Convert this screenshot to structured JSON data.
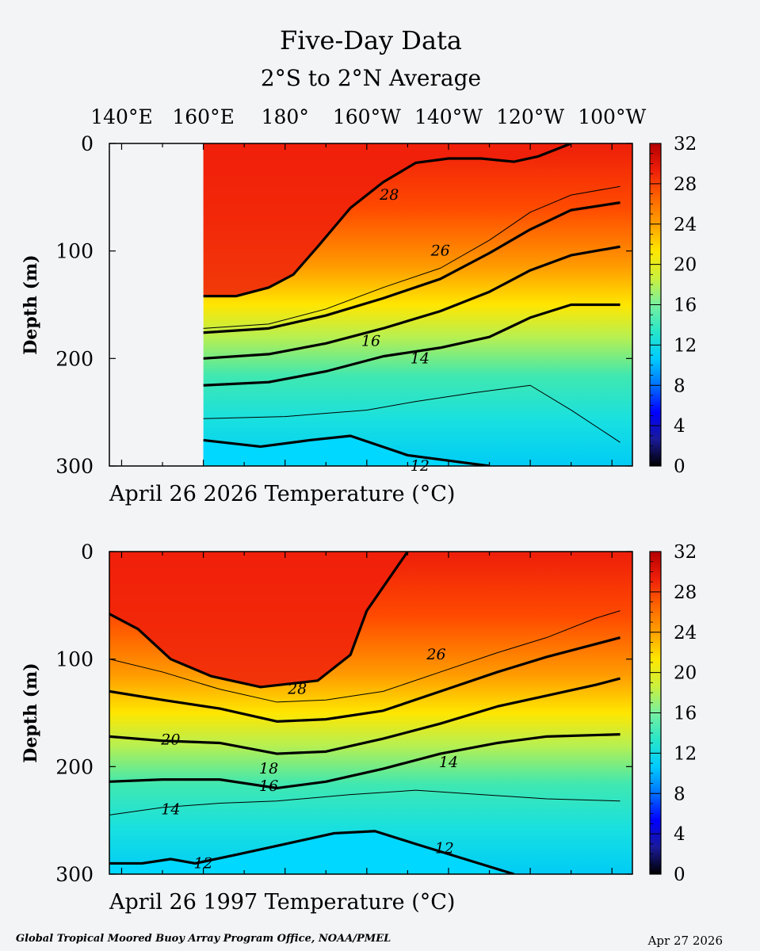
{
  "header": {
    "title": "Five-Day Data",
    "subtitle": "2°S to 2°N Average"
  },
  "footer": {
    "credit": "Global Tropical Moored Buoy Array Program Office, NOAA/PMEL",
    "date": "Apr 27 2026"
  },
  "colors": {
    "background": "#f3f4f6",
    "colorbar_stops": [
      "#000000",
      "#1a1a9a",
      "#0000ff",
      "#0070ff",
      "#00ccff",
      "#28e6c8",
      "#78f0a0",
      "#ccf03c",
      "#ffe600",
      "#ffa000",
      "#ff6400",
      "#ee1e0a",
      "#b40000"
    ]
  },
  "chart_data": [
    {
      "type": "heatmap",
      "panel": "top",
      "caption": "April 26 2026 Temperature  (°C)",
      "xlabel": "",
      "ylabel": "Depth (m)",
      "x_ticks": [
        "140°E",
        "160°E",
        "180°",
        "160°W",
        "140°W",
        "120°W",
        "100°W"
      ],
      "x_tick_values": [
        140,
        160,
        180,
        200,
        220,
        240,
        260
      ],
      "xlim": [
        137,
        265
      ],
      "ylim": [
        300,
        0
      ],
      "y_ticks": [
        0,
        100,
        200,
        300
      ],
      "colorbar": {
        "min": 0,
        "max": 32,
        "ticks": [
          32,
          28,
          24,
          20,
          16,
          12,
          8,
          4,
          0
        ]
      },
      "data_start_lon": 160,
      "contour_labels": [
        {
          "label": "28",
          "lon": 205.5,
          "depth": 48
        },
        {
          "label": "26",
          "lon": 218,
          "depth": 100
        },
        {
          "label": "16",
          "lon": 201,
          "depth": 184
        },
        {
          "label": "14",
          "lon": 213,
          "depth": 200
        },
        {
          "label": "12",
          "lon": 213,
          "depth": 300
        }
      ],
      "contours": [
        {
          "value": 28,
          "points": [
            [
              160,
              142
            ],
            [
              168,
              142
            ],
            [
              176,
              134
            ],
            [
              182,
              122
            ],
            [
              188,
              96
            ],
            [
              196,
              60
            ],
            [
              204,
              36
            ],
            [
              212,
              18
            ],
            [
              220,
              14
            ],
            [
              228,
              14
            ],
            [
              236,
              17
            ],
            [
              242,
              12
            ],
            [
              250,
              0
            ]
          ]
        },
        {
          "value": 26,
          "points": [
            [
              160,
              172
            ],
            [
              176,
              168
            ],
            [
              190,
              154
            ],
            [
              204,
              134
            ],
            [
              218,
              116
            ],
            [
              230,
              90
            ],
            [
              240,
              64
            ],
            [
              250,
              48
            ],
            [
              262,
              40
            ]
          ]
        },
        {
          "value": 24,
          "points": [
            [
              160,
              176
            ],
            [
              176,
              172
            ],
            [
              190,
              160
            ],
            [
              204,
              144
            ],
            [
              218,
              126
            ],
            [
              230,
              102
            ],
            [
              240,
              80
            ],
            [
              250,
              62
            ],
            [
              262,
              55
            ]
          ]
        },
        {
          "value": 20,
          "points": [
            [
              160,
              200
            ],
            [
              176,
              196
            ],
            [
              190,
              186
            ],
            [
              204,
              172
            ],
            [
              218,
              156
            ],
            [
              230,
              138
            ],
            [
              240,
              118
            ],
            [
              250,
              104
            ],
            [
              262,
              96
            ]
          ]
        },
        {
          "value": 16,
          "points": [
            [
              160,
              225
            ],
            [
              176,
              222
            ],
            [
              190,
              212
            ],
            [
              204,
              198
            ],
            [
              218,
              190
            ],
            [
              230,
              180
            ],
            [
              240,
              162
            ],
            [
              250,
              150
            ],
            [
              262,
              150
            ]
          ]
        },
        {
          "value": 14,
          "points": [
            [
              160,
              256
            ],
            [
              180,
              254
            ],
            [
              200,
              248
            ],
            [
              212,
              240
            ],
            [
              226,
              232
            ],
            [
              240,
              225
            ],
            [
              250,
              248
            ],
            [
              262,
              278
            ]
          ]
        },
        {
          "value": 12,
          "points": [
            [
              160,
              276
            ],
            [
              174,
              282
            ],
            [
              186,
              276
            ],
            [
              196,
              272
            ],
            [
              210,
              290
            ],
            [
              230,
              300
            ]
          ]
        }
      ]
    },
    {
      "type": "heatmap",
      "panel": "bottom",
      "caption": "April 26 1997 Temperature  (°C)",
      "xlabel": "",
      "ylabel": "Depth (m)",
      "x_ticks": [],
      "xlim": [
        137,
        265
      ],
      "ylim": [
        300,
        0
      ],
      "y_ticks": [
        0,
        100,
        200,
        300
      ],
      "colorbar": {
        "min": 0,
        "max": 32,
        "ticks": [
          32,
          28,
          24,
          20,
          16,
          12,
          8,
          4,
          0
        ]
      },
      "data_start_lon": 137,
      "contour_labels": [
        {
          "label": "28",
          "lon": 183,
          "depth": 128
        },
        {
          "label": "26",
          "lon": 217,
          "depth": 96
        },
        {
          "label": "20",
          "lon": 152,
          "depth": 175
        },
        {
          "label": "18",
          "lon": 176,
          "depth": 202
        },
        {
          "label": "16",
          "lon": 176,
          "depth": 218
        },
        {
          "label": "14",
          "lon": 152,
          "depth": 240
        },
        {
          "label": "14",
          "lon": 220,
          "depth": 196
        },
        {
          "label": "12",
          "lon": 160,
          "depth": 290
        },
        {
          "label": "12",
          "lon": 219,
          "depth": 276
        }
      ],
      "contours": [
        {
          "value": 28,
          "points": [
            [
              137,
              58
            ],
            [
              144,
              72
            ],
            [
              152,
              100
            ],
            [
              162,
              116
            ],
            [
              174,
              126
            ],
            [
              188,
              120
            ],
            [
              196,
              96
            ],
            [
              200,
              55
            ],
            [
              206,
              22
            ],
            [
              210,
              0
            ]
          ]
        },
        {
          "value": 26,
          "points": [
            [
              137,
              100
            ],
            [
              150,
              112
            ],
            [
              164,
              128
            ],
            [
              178,
              140
            ],
            [
              190,
              138
            ],
            [
              204,
              130
            ],
            [
              218,
              112
            ],
            [
              232,
              94
            ],
            [
              244,
              80
            ],
            [
              256,
              62
            ],
            [
              262,
              55
            ]
          ]
        },
        {
          "value": 24,
          "points": [
            [
              137,
              130
            ],
            [
              150,
              138
            ],
            [
              164,
              146
            ],
            [
              178,
              158
            ],
            [
              190,
              156
            ],
            [
              204,
              148
            ],
            [
              218,
              130
            ],
            [
              232,
              112
            ],
            [
              244,
              98
            ],
            [
              256,
              86
            ],
            [
              262,
              80
            ]
          ]
        },
        {
          "value": 20,
          "points": [
            [
              137,
              172
            ],
            [
              150,
              176
            ],
            [
              164,
              178
            ],
            [
              178,
              188
            ],
            [
              190,
              186
            ],
            [
              204,
              174
            ],
            [
              218,
              160
            ],
            [
              232,
              144
            ],
            [
              244,
              134
            ],
            [
              256,
              124
            ],
            [
              262,
              118
            ]
          ]
        },
        {
          "value": 16,
          "points": [
            [
              137,
              214
            ],
            [
              150,
              212
            ],
            [
              164,
              212
            ],
            [
              178,
              220
            ],
            [
              190,
              214
            ],
            [
              204,
              202
            ],
            [
              218,
              188
            ],
            [
              232,
              178
            ],
            [
              244,
              172
            ],
            [
              262,
              170
            ]
          ]
        },
        {
          "value": 14,
          "points": [
            [
              137,
              245
            ],
            [
              150,
              238
            ],
            [
              164,
              234
            ],
            [
              178,
              232
            ],
            [
              196,
              226
            ],
            [
              212,
              222
            ],
            [
              228,
              226
            ],
            [
              244,
              230
            ],
            [
              262,
              232
            ]
          ]
        },
        {
          "value": 12,
          "points": [
            [
              137,
              290
            ],
            [
              145,
              290
            ],
            [
              152,
              286
            ],
            [
              158,
              290
            ],
            [
              168,
              282
            ],
            [
              180,
              272
            ],
            [
              192,
              262
            ],
            [
              202,
              260
            ],
            [
              212,
              272
            ],
            [
              224,
              286
            ],
            [
              236,
              300
            ]
          ]
        }
      ]
    }
  ]
}
